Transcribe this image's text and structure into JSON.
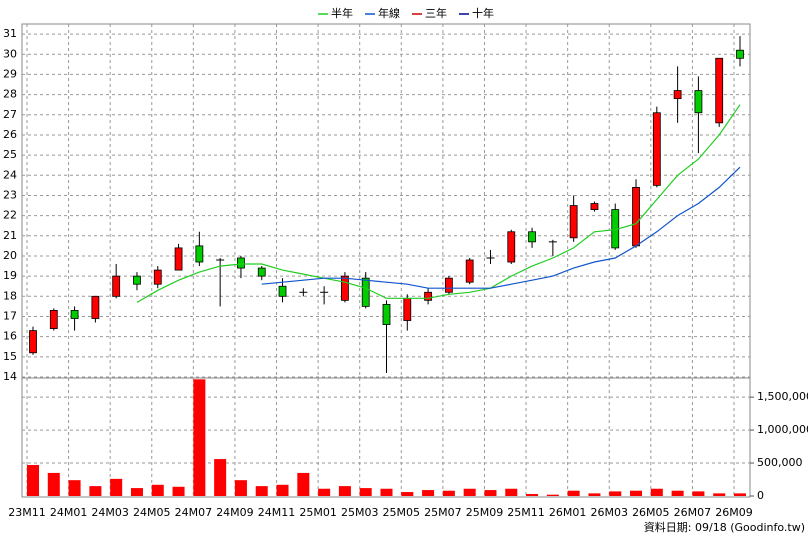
{
  "chart_data": {
    "type": "candlestick",
    "legend": "top",
    "grid": true,
    "categories": [
      "23M11",
      null,
      "24M01",
      null,
      "24M03",
      null,
      "24M05",
      null,
      "24M07",
      null,
      "24M09",
      null,
      "24M11",
      null,
      "25M01",
      null,
      "25M03",
      null,
      "25M05",
      null,
      "25M07",
      null,
      "25M09",
      null,
      "25M11",
      null,
      "26M01",
      null,
      "26M03",
      null,
      "26M05",
      null,
      "26M07",
      null,
      "26M09"
    ],
    "ohlc": {
      "up_color": "#ff0000",
      "down_color": "#00cc00",
      "open": [
        15.2,
        16.4,
        17.3,
        16.9,
        18.0,
        19.0,
        18.6,
        19.3,
        20.5,
        19.8,
        19.9,
        19.4,
        18.5,
        18.2,
        18.2,
        17.8,
        18.9,
        17.6,
        16.8,
        17.8,
        18.2,
        18.7,
        19.9,
        19.7,
        21.2,
        20.7,
        20.9,
        22.3,
        22.3,
        20.5,
        23.5,
        27.8,
        28.2,
        26.6,
        30.2
      ],
      "high": [
        16.5,
        17.4,
        17.5,
        18.0,
        19.6,
        19.2,
        19.5,
        20.6,
        21.2,
        19.9,
        20.0,
        19.5,
        18.9,
        18.4,
        18.5,
        19.2,
        19.2,
        17.8,
        18.1,
        18.4,
        19.0,
        19.9,
        20.3,
        21.3,
        21.4,
        20.8,
        23.0,
        22.7,
        22.6,
        23.8,
        27.4,
        29.4,
        28.9,
        29.8,
        30.9
      ],
      "low": [
        15.1,
        16.3,
        16.3,
        16.7,
        17.9,
        18.3,
        18.4,
        19.3,
        19.5,
        17.5,
        18.9,
        18.8,
        17.7,
        18.0,
        17.6,
        17.7,
        17.4,
        14.2,
        16.3,
        17.6,
        18.1,
        18.6,
        19.6,
        19.6,
        20.4,
        20.0,
        20.7,
        22.2,
        20.3,
        20.4,
        23.4,
        26.6,
        25.1,
        26.4,
        29.4
      ],
      "close": [
        16.3,
        17.3,
        16.9,
        18.0,
        19.0,
        18.6,
        19.3,
        20.4,
        19.7,
        19.8,
        19.4,
        19.0,
        18.0,
        18.2,
        18.2,
        19.0,
        17.5,
        16.6,
        17.9,
        18.2,
        18.9,
        19.8,
        19.9,
        21.2,
        20.7,
        20.7,
        22.5,
        22.6,
        20.4,
        23.4,
        27.1,
        28.2,
        27.1,
        29.8,
        29.8
      ]
    },
    "series": [
      {
        "name": "半年",
        "color": "#22cc22",
        "values": [
          null,
          null,
          null,
          null,
          null,
          17.7,
          18.3,
          18.8,
          19.2,
          19.5,
          19.6,
          19.6,
          19.3,
          19.1,
          18.9,
          18.7,
          18.4,
          17.9,
          17.9,
          17.9,
          18.1,
          18.2,
          18.4,
          19.0,
          19.5,
          19.9,
          20.4,
          21.2,
          21.3,
          21.6,
          22.8,
          24.0,
          24.8,
          26.0,
          27.5
        ]
      },
      {
        "name": "年線",
        "color": "#1155cc",
        "values": [
          null,
          null,
          null,
          null,
          null,
          null,
          null,
          null,
          null,
          null,
          null,
          18.6,
          18.7,
          18.8,
          18.9,
          18.9,
          18.8,
          18.7,
          18.6,
          18.4,
          18.4,
          18.4,
          18.4,
          18.6,
          18.8,
          19.0,
          19.4,
          19.7,
          19.9,
          20.5,
          21.2,
          22.0,
          22.6,
          23.4,
          24.4
        ]
      },
      {
        "name": "三年",
        "color": "#cc0000",
        "values": [
          null,
          null,
          null,
          null,
          null,
          null,
          null,
          null,
          null,
          null,
          null,
          null,
          null,
          null,
          null,
          null,
          null,
          null,
          null,
          null,
          null,
          null,
          null,
          null,
          null,
          null,
          null,
          null,
          null,
          null,
          null,
          null,
          null,
          null,
          null
        ]
      },
      {
        "name": "十年",
        "color": "#000099",
        "values": [
          null,
          null,
          null,
          null,
          null,
          null,
          null,
          null,
          null,
          null,
          null,
          null,
          null,
          null,
          null,
          null,
          null,
          null,
          null,
          null,
          null,
          null,
          null,
          null,
          null,
          null,
          null,
          null,
          null,
          null,
          null,
          null,
          null,
          null,
          null
        ]
      }
    ],
    "volume": {
      "color": "#ff0000",
      "axis": "y2",
      "values": [
        470000,
        350000,
        240000,
        150000,
        260000,
        120000,
        170000,
        140000,
        1770000,
        560000,
        240000,
        150000,
        170000,
        350000,
        110000,
        150000,
        120000,
        110000,
        60000,
        90000,
        80000,
        110000,
        90000,
        110000,
        30000,
        20000,
        80000,
        40000,
        70000,
        80000,
        110000,
        80000,
        70000,
        40000,
        40000
      ]
    },
    "ylim": [
      13.95,
      31.5
    ],
    "yticks": [
      14,
      15,
      16,
      17,
      18,
      19,
      20,
      21,
      22,
      23,
      24,
      25,
      26,
      27,
      28,
      29,
      30,
      31
    ],
    "y2lim": [
      0,
      1790000
    ],
    "y2ticks": [
      0,
      {
        "value": 500000,
        "label": "500,000"
      },
      {
        "value": 1000000,
        "label": "1,000,000"
      },
      {
        "value": 1500000,
        "label": "1,500,000"
      }
    ],
    "footer": "資料日期: 09/18 (Goodinfo.tw)"
  }
}
